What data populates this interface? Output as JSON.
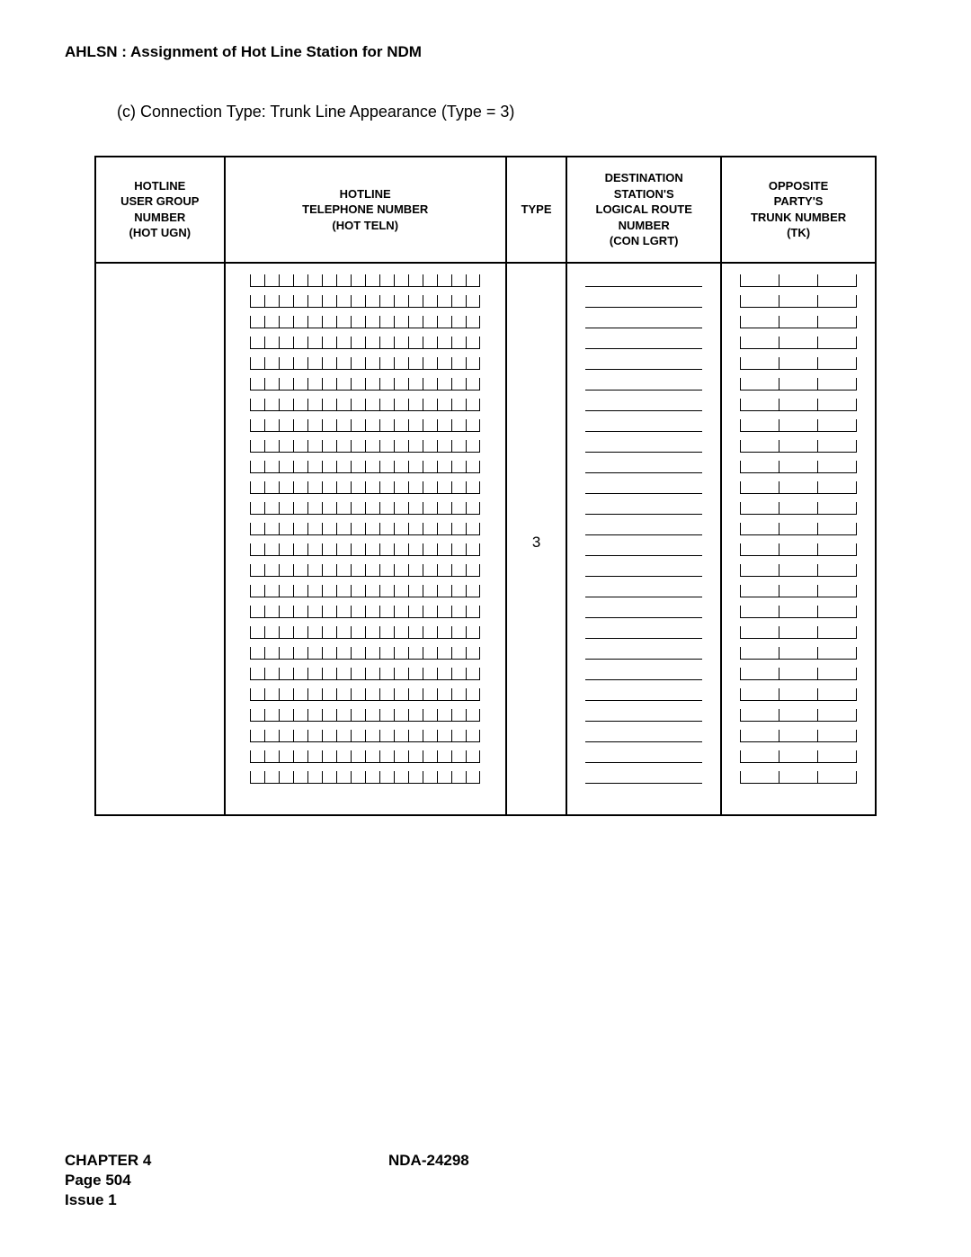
{
  "header": {
    "title": "AHLSN : Assignment of Hot Line Station for NDM",
    "subtitle": "(c)   Connection Type: Trunk Line Appearance (Type = 3)"
  },
  "table": {
    "row_count": 25,
    "teln_digits": 16,
    "tk_segments": 3,
    "type_value": "3",
    "columns": [
      {
        "key": "hot_ugn",
        "label": "HOTLINE\nUSER GROUP\nNUMBER\n(HOT UGN)"
      },
      {
        "key": "hot_teln",
        "label": "HOTLINE\nTELEPHONE NUMBER\n(HOT TELN)"
      },
      {
        "key": "type",
        "label": "TYPE"
      },
      {
        "key": "con_lgrt",
        "label": "DESTINATION\nSTATION'S\nLOGICAL ROUTE\nNUMBER\n(CON LGRT)"
      },
      {
        "key": "tk",
        "label": "OPPOSITE\nPARTY'S\nTRUNK NUMBER\n(TK)"
      }
    ]
  },
  "footer": {
    "chapter": "CHAPTER 4",
    "docnum": "NDA-24298",
    "page": "Page 504",
    "issue": "Issue 1"
  },
  "colors": {
    "text": "#000000",
    "background": "#ffffff",
    "border": "#000000"
  }
}
